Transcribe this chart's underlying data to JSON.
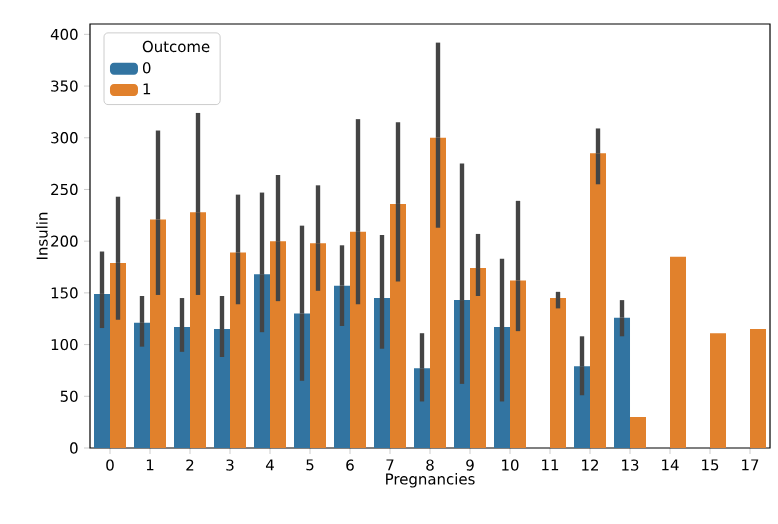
{
  "chart_data": {
    "type": "bar",
    "xlabel": "Pregnancies",
    "ylabel": "Insulin",
    "legend_title": "Outcome",
    "legend": "top left",
    "categories": [
      "0",
      "1",
      "2",
      "3",
      "4",
      "5",
      "6",
      "7",
      "8",
      "9",
      "10",
      "11",
      "12",
      "13",
      "14",
      "15",
      "17"
    ],
    "ylim": [
      0,
      410
    ],
    "yticks": [
      0,
      50,
      100,
      150,
      200,
      250,
      300,
      350,
      400
    ],
    "series": [
      {
        "name": "0",
        "color": "#3274a1",
        "values": [
          149,
          121,
          117,
          115,
          168,
          130,
          157,
          145,
          77,
          143,
          117,
          null,
          79,
          126,
          null,
          null,
          null
        ],
        "errors": [
          [
            116,
            190
          ],
          [
            98,
            147
          ],
          [
            93,
            145
          ],
          [
            88,
            147
          ],
          [
            112,
            247
          ],
          [
            65,
            215
          ],
          [
            118,
            196
          ],
          [
            96,
            206
          ],
          [
            45,
            111
          ],
          [
            62,
            275
          ],
          [
            45,
            183
          ],
          null,
          [
            51,
            108
          ],
          [
            108,
            143
          ],
          null,
          null,
          null
        ]
      },
      {
        "name": "1",
        "color": "#e1812c",
        "values": [
          179,
          221,
          228,
          189,
          200,
          198,
          209,
          236,
          300,
          174,
          162,
          145,
          285,
          30,
          185,
          111,
          115
        ],
        "errors": [
          [
            124,
            243
          ],
          [
            148,
            307
          ],
          [
            148,
            324
          ],
          [
            139,
            245
          ],
          [
            142,
            264
          ],
          [
            152,
            254
          ],
          [
            139,
            318
          ],
          [
            161,
            315
          ],
          [
            213,
            392
          ],
          [
            147,
            207
          ],
          [
            113,
            239
          ],
          [
            135,
            151
          ],
          [
            255,
            309
          ],
          null,
          null,
          null,
          null
        ]
      }
    ]
  }
}
